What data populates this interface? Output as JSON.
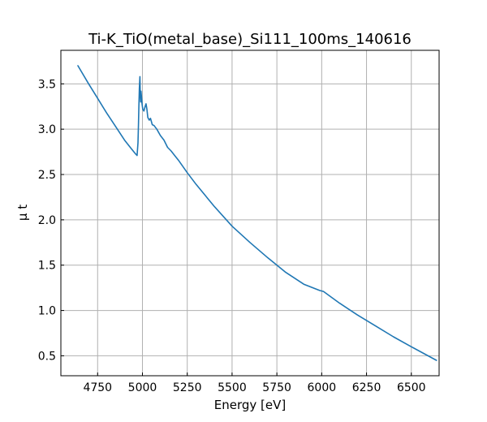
{
  "chart_data": {
    "type": "line",
    "title": "Ti-K_TiO(metal_base)_Si111_100ms_140616",
    "xlabel": "Energy [eV]",
    "ylabel": "μ t",
    "xlim": [
      4545,
      6655
    ],
    "ylim": [
      0.28,
      3.87
    ],
    "xticks": [
      4750,
      5000,
      5250,
      5500,
      5750,
      6000,
      6250,
      6500
    ],
    "yticks": [
      0.5,
      1.0,
      1.5,
      2.0,
      2.5,
      3.0,
      3.5
    ],
    "xtick_labels": [
      "4750",
      "5000",
      "5250",
      "5500",
      "5750",
      "6000",
      "6250",
      "6500"
    ],
    "ytick_labels": [
      "0.5",
      "1.0",
      "1.5",
      "2.0",
      "2.5",
      "3.0",
      "3.5"
    ],
    "grid": true,
    "series": [
      {
        "color": "#1f77b4",
        "x": [
          4640,
          4700,
          4750,
          4800,
          4850,
          4900,
          4940,
          4960,
          4970,
          4975,
          4978,
          4980,
          4983,
          4986,
          4988,
          4990,
          4992,
          4995,
          4998,
          5002,
          5008,
          5015,
          5020,
          5025,
          5030,
          5038,
          5045,
          5055,
          5065,
          5080,
          5100,
          5120,
          5140,
          5160,
          5180,
          5200,
          5250,
          5300,
          5400,
          5500,
          5600,
          5700,
          5800,
          5900,
          5990,
          6010,
          6100,
          6200,
          6300,
          6400,
          6500,
          6640
        ],
        "y": [
          3.7,
          3.5,
          3.34,
          3.18,
          3.03,
          2.88,
          2.78,
          2.73,
          2.71,
          2.85,
          3.05,
          3.25,
          3.45,
          3.58,
          3.38,
          3.3,
          3.42,
          3.35,
          3.28,
          3.22,
          3.2,
          3.25,
          3.28,
          3.22,
          3.13,
          3.1,
          3.12,
          3.05,
          3.04,
          3.0,
          2.93,
          2.88,
          2.8,
          2.76,
          2.71,
          2.66,
          2.52,
          2.39,
          2.15,
          1.93,
          1.75,
          1.58,
          1.42,
          1.29,
          1.22,
          1.21,
          1.08,
          0.95,
          0.83,
          0.71,
          0.6,
          0.45
        ]
      }
    ]
  }
}
